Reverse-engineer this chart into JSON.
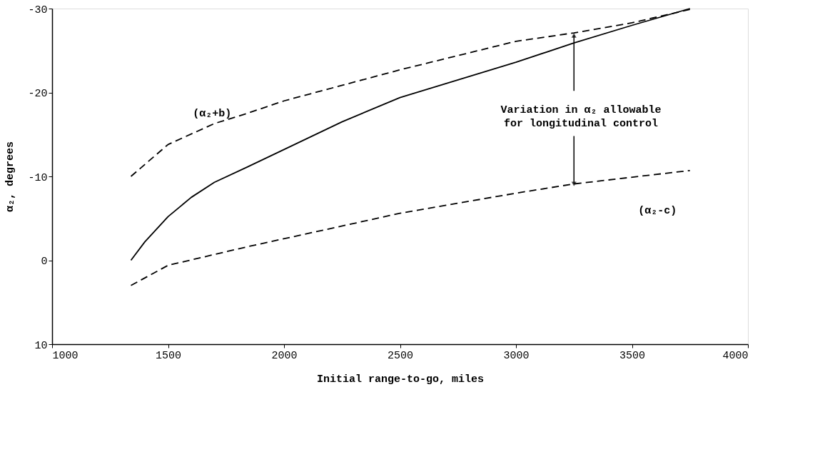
{
  "chart_data": {
    "type": "line",
    "xlabel": "Initial range-to-go, miles",
    "ylabel": "α₂, degrees",
    "xlim": [
      1000,
      4000
    ],
    "xticks": [
      1000,
      1500,
      2000,
      2500,
      3000,
      3500,
      4000
    ],
    "ylim": [
      10,
      -30
    ],
    "yticks": [
      10,
      0,
      -10,
      -20,
      -30
    ],
    "grid": false,
    "series": [
      {
        "color": "#000000",
        "line_style": "solid",
        "x": [
          1340,
          1400,
          1500,
          1600,
          1700,
          1840,
          2000,
          2250,
          2500,
          2750,
          3000,
          3250,
          3500,
          3750
        ],
        "values": [
          0,
          -2.2,
          -5.2,
          -7.5,
          -9.3,
          -11.1,
          -13.2,
          -16.5,
          -19.4,
          -21.5,
          -23.6,
          -25.9,
          -28,
          -30
        ]
      },
      {
        "color": "#000000",
        "line_style": "dashed",
        "x": [
          1340,
          1500,
          1700,
          1840,
          2000,
          2500,
          3000,
          3250,
          3500,
          3750
        ],
        "values": [
          -10,
          -13.8,
          -16.3,
          -17.5,
          -19,
          -22.7,
          -26.1,
          -27.1,
          -28.3,
          -29.9
        ]
      },
      {
        "color": "#000000",
        "line_style": "dashed",
        "x": [
          1340,
          1500,
          1840,
          2500,
          3000,
          3250,
          3750
        ],
        "values": [
          3,
          0.6,
          -1.6,
          -5.6,
          -8,
          -9.1,
          -10.7
        ]
      }
    ],
    "annotations": [
      "(α₂+b)",
      "(α₂-c)",
      {
        "text": "Variation in α₂ allowable\nfor longitudinal control",
        "x": 3250,
        "y": -9.1
      }
    ]
  }
}
